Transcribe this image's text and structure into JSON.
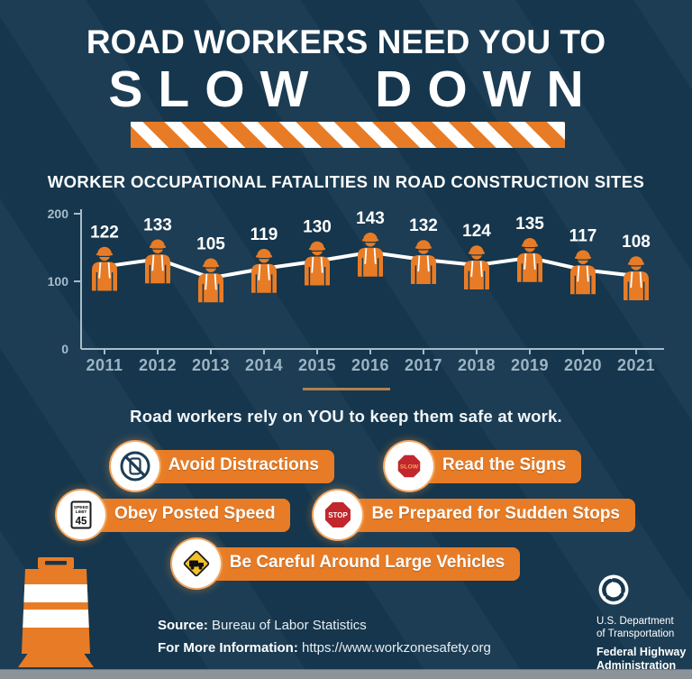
{
  "colors": {
    "background": "#16384f",
    "orange": "#e87c26",
    "axis": "#a7bdca",
    "chart_line": "#ffffff",
    "sign_red": "#c1272d",
    "sign_yellow": "#f3c02c",
    "road_gray": "#8c949a"
  },
  "header": {
    "line1": "ROAD WORKERS NEED YOU TO",
    "line2": "SLOW DOWN"
  },
  "chart_data": {
    "type": "line",
    "title": "WORKER OCCUPATIONAL FATALITIES IN ROAD CONSTRUCTION SITES",
    "categories": [
      "2011",
      "2012",
      "2013",
      "2014",
      "2015",
      "2016",
      "2017",
      "2018",
      "2019",
      "2020",
      "2021"
    ],
    "values": [
      122,
      133,
      105,
      119,
      130,
      143,
      132,
      124,
      135,
      117,
      108
    ],
    "xlabel": "",
    "ylabel": "",
    "ylim": [
      0,
      200
    ],
    "yticks": [
      0,
      100,
      200
    ],
    "grid": false,
    "legend": "none",
    "marker": "road-worker-icon",
    "line_color": "#ffffff",
    "value_labels_shown": true
  },
  "tagline": "Road workers rely on YOU to keep them safe at work.",
  "tips": [
    {
      "label": "Avoid Distractions",
      "icon": "no-phone-icon"
    },
    {
      "label": "Read the Signs",
      "icon": "slow-sign-icon",
      "sign_text": "SLOW"
    },
    {
      "label": "Obey Posted Speed",
      "icon": "speed-limit-sign-icon",
      "sign_lines": [
        "SPEED",
        "LIMIT",
        "45"
      ]
    },
    {
      "label": "Be Prepared for Sudden Stops",
      "icon": "stop-sign-icon",
      "sign_text": "STOP"
    },
    {
      "label": "Be Careful Around Large Vehicles",
      "icon": "truck-warning-sign-icon"
    }
  ],
  "footer": {
    "source_label": "Source:",
    "source_value": "Bureau of Labor Statistics",
    "info_label": "For More Information:",
    "info_value": "https://www.workzonesafety.org"
  },
  "dot_logo": {
    "dept_line1": "U.S. Department",
    "dept_line2": "of Transportation",
    "agency_line1": "Federal Highway",
    "agency_line2": "Administration"
  }
}
